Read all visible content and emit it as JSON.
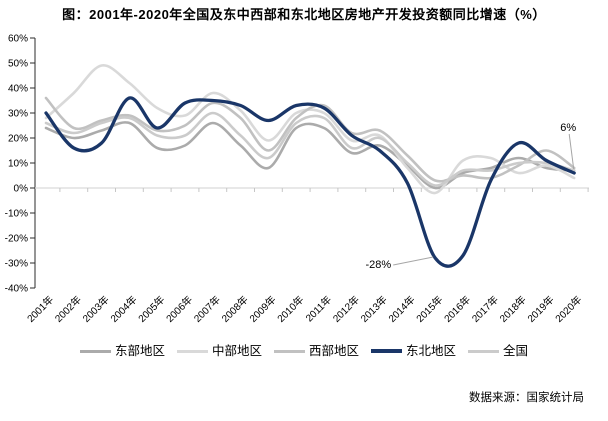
{
  "title": "图：2001年-2020年全国及东中西部和东北地区房地产开发投资额同比增速（%）",
  "source": "数据来源：国家统计局",
  "colors": {
    "east": "#ababab",
    "central": "#d9d9d9",
    "west": "#c1c1c1",
    "northeast": "#1a3668",
    "national": "#cbcbcb",
    "axis": "#2b2b2b",
    "gridline": "#d9d9d9",
    "tick": "#c6c6c6",
    "leader": "#a6a6a6",
    "text": "#000000"
  },
  "chart_data": {
    "type": "line",
    "title": "图：2001年-2020年全国及东中西部和东北地区房地产开发投资额同比增速（%）",
    "xlabel": "",
    "ylabel": "",
    "ylim": [
      -40,
      60
    ],
    "ytick_step": 10,
    "grid": "zero-line-only",
    "legend_position": "bottom",
    "smoothed": true,
    "categories": [
      "2001年",
      "2002年",
      "2003年",
      "2004年",
      "2005年",
      "2006年",
      "2007年",
      "2008年",
      "2009年",
      "2010年",
      "2011年",
      "2012年",
      "2013年",
      "2014年",
      "2015年",
      "2016年",
      "2017年",
      "2018年",
      "2019年",
      "2020年"
    ],
    "yticks": [
      60,
      50,
      40,
      30,
      20,
      10,
      0,
      -10,
      -20,
      -30,
      -40
    ],
    "ytick_labels": [
      "60%",
      "50%",
      "40%",
      "30%",
      "20%",
      "10%",
      "0%",
      "-10%",
      "-20%",
      "-30%",
      "-40%"
    ],
    "series": [
      {
        "name": "东部地区",
        "color_key": "east",
        "values": [
          24,
          20,
          23,
          26,
          16,
          17,
          26,
          17,
          8,
          24,
          24,
          14,
          17,
          9,
          0,
          6,
          8,
          12,
          8,
          7
        ]
      },
      {
        "name": "中部地区",
        "color_key": "central",
        "values": [
          28,
          38,
          49,
          42,
          32,
          29,
          38,
          31,
          19,
          30,
          30,
          19,
          21,
          8,
          -2,
          11,
          12,
          6,
          9,
          4
        ]
      },
      {
        "name": "西部地区",
        "color_key": "west",
        "values": [
          36,
          24,
          27,
          29,
          23,
          25,
          34,
          28,
          15,
          28,
          33,
          22,
          23,
          13,
          3,
          5,
          4,
          9,
          15,
          8
        ]
      },
      {
        "name": "东北地区",
        "color_key": "northeast",
        "values": [
          30,
          16,
          18,
          36,
          24,
          34,
          35,
          33,
          27,
          33,
          32,
          21,
          15,
          2,
          -28,
          -27,
          3,
          18,
          11,
          6
        ]
      },
      {
        "name": "全国",
        "color_key": "national",
        "values": [
          26,
          22,
          26,
          28,
          21,
          21,
          30,
          21,
          12,
          26,
          28,
          16,
          20,
          10,
          1,
          7,
          7,
          10,
          10,
          7
        ]
      }
    ],
    "annotations": [
      {
        "text": "-28%",
        "category": "2015年",
        "value": -28,
        "label_side": "left"
      },
      {
        "text": "6%",
        "category": "2020年",
        "value": 6,
        "label_side": "above"
      }
    ]
  }
}
